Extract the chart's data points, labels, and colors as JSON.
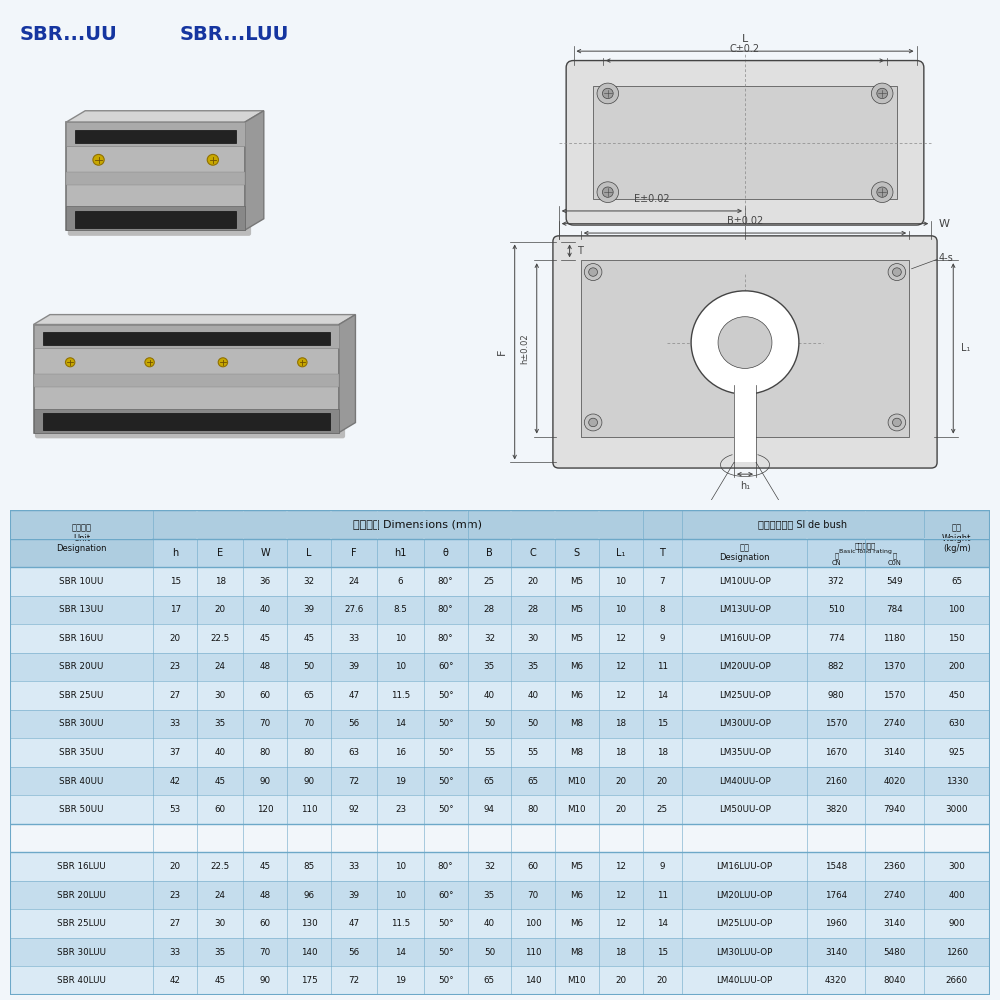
{
  "bg_color": "#f2f6fa",
  "title1": "SBR...UU",
  "title2": "SBR...LUU",
  "title_color": "#1535a0",
  "table_header_bg": "#aecde0",
  "table_subheader_bg": "#bdd8ea",
  "table_row_bg1": "#daeaf5",
  "table_row_bg2": "#c5dded",
  "table_gap_bg": "#f2f6fa",
  "table_border_color": "#6da8c8",
  "table_text_color": "#111111",
  "draw_color": "#444444",
  "draw_bg": "#f2f6fa",
  "rows_uu": [
    [
      "SBR 10UU",
      "15",
      "18",
      "36",
      "32",
      "24",
      "6",
      "80°",
      "25",
      "20",
      "M5",
      "10",
      "7",
      "LM10UU-OP",
      "372",
      "549",
      "65"
    ],
    [
      "SBR 13UU",
      "17",
      "20",
      "40",
      "39",
      "27.6",
      "8.5",
      "80°",
      "28",
      "28",
      "M5",
      "10",
      "8",
      "LM13UU-OP",
      "510",
      "784",
      "100"
    ],
    [
      "SBR 16UU",
      "20",
      "22.5",
      "45",
      "45",
      "33",
      "10",
      "80°",
      "32",
      "30",
      "M5",
      "12",
      "9",
      "LM16UU-OP",
      "774",
      "1180",
      "150"
    ],
    [
      "SBR 20UU",
      "23",
      "24",
      "48",
      "50",
      "39",
      "10",
      "60°",
      "35",
      "35",
      "M6",
      "12",
      "11",
      "LM20UU-OP",
      "882",
      "1370",
      "200"
    ],
    [
      "SBR 25UU",
      "27",
      "30",
      "60",
      "65",
      "47",
      "11.5",
      "50°",
      "40",
      "40",
      "M6",
      "12",
      "14",
      "LM25UU-OP",
      "980",
      "1570",
      "450"
    ],
    [
      "SBR 30UU",
      "33",
      "35",
      "70",
      "70",
      "56",
      "14",
      "50°",
      "50",
      "50",
      "M8",
      "18",
      "15",
      "LM30UU-OP",
      "1570",
      "2740",
      "630"
    ],
    [
      "SBR 35UU",
      "37",
      "40",
      "80",
      "80",
      "63",
      "16",
      "50°",
      "55",
      "55",
      "M8",
      "18",
      "18",
      "LM35UU-OP",
      "1670",
      "3140",
      "925"
    ],
    [
      "SBR 40UU",
      "42",
      "45",
      "90",
      "90",
      "72",
      "19",
      "50°",
      "65",
      "65",
      "M10",
      "20",
      "20",
      "LM40UU-OP",
      "2160",
      "4020",
      "1330"
    ],
    [
      "SBR 50UU",
      "53",
      "60",
      "120",
      "110",
      "92",
      "23",
      "50°",
      "94",
      "80",
      "M10",
      "20",
      "25",
      "LM50UU-OP",
      "3820",
      "7940",
      "3000"
    ]
  ],
  "rows_luu": [
    [
      "SBR 16LUU",
      "20",
      "22.5",
      "45",
      "85",
      "33",
      "10",
      "80°",
      "32",
      "60",
      "M5",
      "12",
      "9",
      "LM16LUU-OP",
      "1548",
      "2360",
      "300"
    ],
    [
      "SBR 20LUU",
      "23",
      "24",
      "48",
      "96",
      "39",
      "10",
      "60°",
      "35",
      "70",
      "M6",
      "12",
      "11",
      "LM20LUU-OP",
      "1764",
      "2740",
      "400"
    ],
    [
      "SBR 25LUU",
      "27",
      "30",
      "60",
      "130",
      "47",
      "11.5",
      "50°",
      "40",
      "100",
      "M6",
      "12",
      "14",
      "LM25LUU-OP",
      "1960",
      "3140",
      "900"
    ],
    [
      "SBR 30LUU",
      "33",
      "35",
      "70",
      "140",
      "56",
      "14",
      "50°",
      "50",
      "110",
      "M8",
      "18",
      "15",
      "LM30LUU-OP",
      "3140",
      "5480",
      "1260"
    ],
    [
      "SBR 40LUU",
      "42",
      "45",
      "90",
      "175",
      "72",
      "19",
      "50°",
      "65",
      "140",
      "M10",
      "20",
      "20",
      "LM40LUU-OP",
      "4320",
      "8040",
      "2660"
    ]
  ]
}
